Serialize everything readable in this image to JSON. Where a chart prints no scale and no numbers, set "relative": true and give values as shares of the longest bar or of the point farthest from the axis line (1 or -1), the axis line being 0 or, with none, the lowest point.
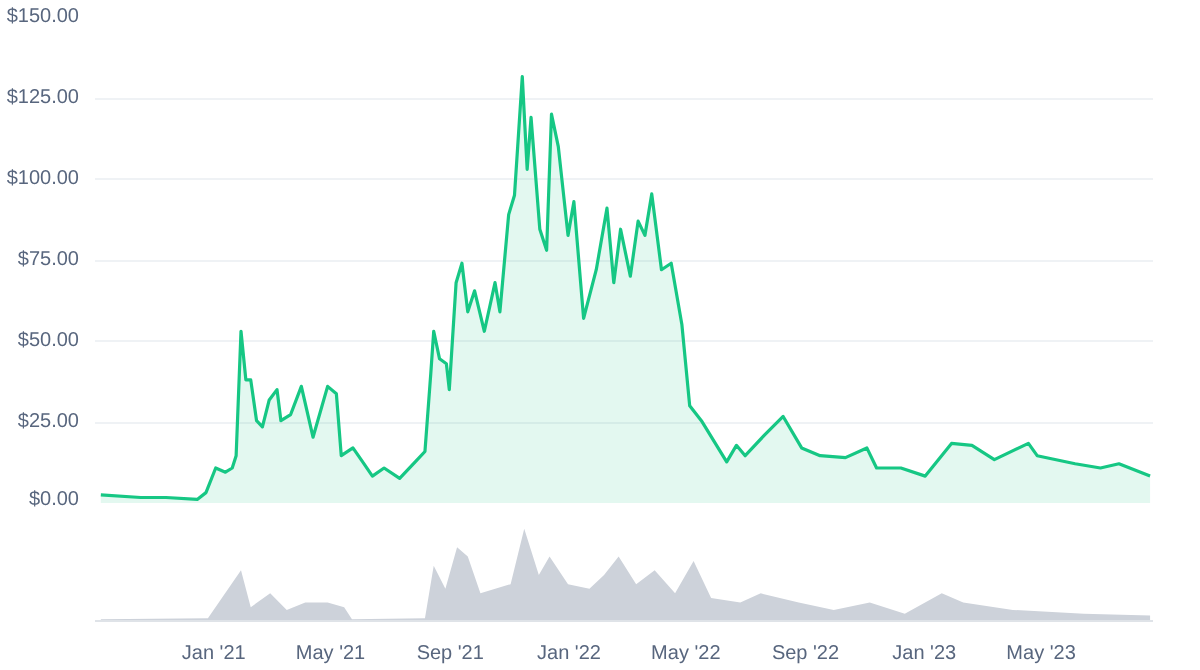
{
  "chart_data": [
    {
      "type": "area",
      "xlim": [
        "2020-09-01",
        "2023-08-24"
      ],
      "ylim": [
        0,
        150
      ],
      "yticks": [
        {
          "value": 0,
          "label": "$0.00"
        },
        {
          "value": 25,
          "label": "$25.00"
        },
        {
          "value": 50,
          "label": "$50.00"
        },
        {
          "value": 75,
          "label": "$75.00"
        },
        {
          "value": 100,
          "label": "$100.00"
        },
        {
          "value": 125,
          "label": "$125.00"
        },
        {
          "value": 150,
          "label": "$150.00"
        }
      ],
      "grid": "y",
      "tick_labels": "y",
      "x": [
        "2020-09-07",
        "2020-10-18",
        "2020-11-13",
        "2020-12-15",
        "2020-12-24",
        "2021-01-03",
        "2021-01-13",
        "2021-01-20",
        "2021-01-24",
        "2021-01-29",
        "2021-02-03",
        "2021-02-08",
        "2021-02-14",
        "2021-02-20",
        "2021-02-27",
        "2021-03-07",
        "2021-03-11",
        "2021-03-21",
        "2021-04-01",
        "2021-04-13",
        "2021-04-28",
        "2021-05-07",
        "2021-05-12",
        "2021-05-24",
        "2021-06-03",
        "2021-06-13",
        "2021-06-25",
        "2021-07-11",
        "2021-07-27",
        "2021-08-06",
        "2021-08-12",
        "2021-08-15",
        "2021-08-21",
        "2021-08-28",
        "2021-08-31",
        "2021-09-07",
        "2021-09-13",
        "2021-09-19",
        "2021-09-26",
        "2021-10-06",
        "2021-10-17",
        "2021-10-22",
        "2021-10-31",
        "2021-11-06",
        "2021-11-14",
        "2021-11-19",
        "2021-11-23",
        "2021-12-02",
        "2021-12-09",
        "2021-12-14",
        "2021-12-21",
        "2021-12-31",
        "2022-01-06",
        "2022-01-16",
        "2022-01-29",
        "2022-02-09",
        "2022-02-16",
        "2022-02-23",
        "2022-03-05",
        "2022-03-13",
        "2022-03-20",
        "2022-03-27",
        "2022-04-06",
        "2022-04-16",
        "2022-04-27",
        "2022-05-05",
        "2022-05-17",
        "2022-06-12",
        "2022-06-22",
        "2022-07-01",
        "2022-07-21",
        "2022-08-09",
        "2022-08-28",
        "2022-09-16",
        "2022-10-12",
        "2022-11-03",
        "2022-11-13",
        "2022-12-08",
        "2023-01-02",
        "2023-01-29",
        "2023-02-19",
        "2023-03-14",
        "2023-04-18",
        "2023-04-27",
        "2023-06-05",
        "2023-07-01",
        "2023-07-20",
        "2023-08-21"
      ],
      "series": [
        {
          "color": "#16c784",
          "values": [
            2.5,
            1.7,
            1.7,
            1.1,
            3.2,
            10.8,
            9.5,
            10.8,
            14.6,
            53,
            38,
            38,
            25.4,
            23.5,
            31.8,
            35,
            25.4,
            27.3,
            36,
            20.3,
            36,
            33.7,
            14.6,
            17,
            12.7,
            8.3,
            10.8,
            7.6,
            12.7,
            15.9,
            40,
            53,
            44.5,
            43,
            35,
            68,
            74,
            59,
            65.5,
            53,
            68,
            59,
            89,
            95,
            131.6,
            103,
            119,
            84.5,
            78,
            120,
            110,
            82.6,
            93,
            57,
            72,
            91,
            68,
            84.5,
            70,
            87,
            82.6,
            95.4,
            72,
            74,
            55,
            30,
            25.4,
            12.7,
            17.8,
            14.6,
            21,
            26.7,
            17,
            14.6,
            14,
            17,
            10.8,
            10.8,
            8.3,
            18.4,
            17.8,
            13.4,
            18.4,
            14.6,
            12.1,
            10.8,
            12.1,
            8.3
          ]
        }
      ]
    },
    {
      "type": "area",
      "relative": true,
      "tick_labels": "x",
      "xlim": [
        "2020-09-01",
        "2023-08-24"
      ],
      "xticks": [
        {
          "value": "2021-01-01",
          "label": "Jan '21"
        },
        {
          "value": "2021-05-01",
          "label": "May '21"
        },
        {
          "value": "2021-09-01",
          "label": "Sep '21"
        },
        {
          "value": "2022-01-01",
          "label": "Jan '22"
        },
        {
          "value": "2022-05-01",
          "label": "May '22"
        },
        {
          "value": "2022-09-01",
          "label": "Sep '22"
        },
        {
          "value": "2023-01-01",
          "label": "Jan '23"
        },
        {
          "value": "2023-05-01",
          "label": "May '23"
        }
      ],
      "x": [
        "2020-09-07",
        "2020-12-26",
        "2021-01-29",
        "2021-02-08",
        "2021-02-28",
        "2021-03-17",
        "2021-04-05",
        "2021-04-28",
        "2021-05-15",
        "2021-05-23",
        "2021-08-06",
        "2021-08-15",
        "2021-08-27",
        "2021-09-08",
        "2021-09-19",
        "2021-10-02",
        "2021-11-02",
        "2021-11-16",
        "2021-12-01",
        "2021-12-12",
        "2021-12-31",
        "2022-01-22",
        "2022-02-06",
        "2022-02-21",
        "2022-03-11",
        "2022-03-30",
        "2022-04-20",
        "2022-05-09",
        "2022-05-27",
        "2022-06-26",
        "2022-07-17",
        "2022-08-25",
        "2022-09-30",
        "2022-11-06",
        "2022-12-12",
        "2023-01-19",
        "2023-02-10",
        "2023-04-02",
        "2023-06-14",
        "2023-08-21"
      ],
      "series": [
        {
          "color": "#cdd2da",
          "values": [
            0.02,
            0.03,
            0.55,
            0.15,
            0.3,
            0.12,
            0.2,
            0.2,
            0.15,
            0.02,
            0.03,
            0.6,
            0.35,
            0.8,
            0.7,
            0.3,
            0.4,
            1.0,
            0.5,
            0.7,
            0.4,
            0.35,
            0.5,
            0.7,
            0.4,
            0.55,
            0.3,
            0.65,
            0.25,
            0.2,
            0.3,
            0.2,
            0.12,
            0.2,
            0.08,
            0.3,
            0.2,
            0.12,
            0.08,
            0.06
          ]
        }
      ]
    }
  ]
}
